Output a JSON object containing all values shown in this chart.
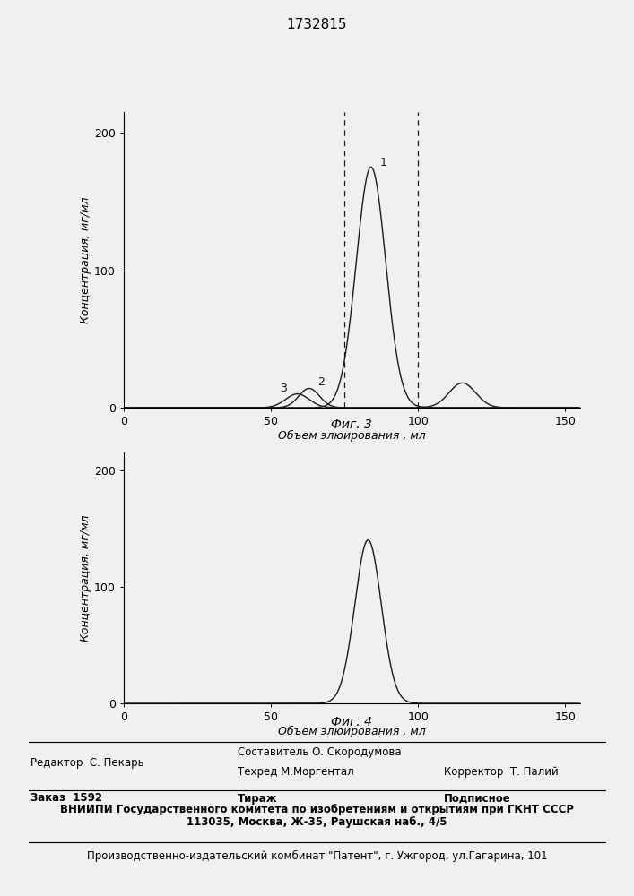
{
  "title": "1732815",
  "fig3_caption": "Фиг. 3",
  "fig4_caption": "Фиг. 4",
  "xlabel": "Объем элюирования , мл",
  "ylabel": "Концентрация, мг/мл",
  "xlim": [
    0,
    155
  ],
  "ylim": [
    0,
    215
  ],
  "yticks": [
    0,
    100,
    200
  ],
  "xticks": [
    0,
    50,
    100,
    150
  ],
  "dashed_x1": 75,
  "dashed_x2": 100,
  "bg": "#f0f0f0",
  "lc": "#1a1a1a",
  "footer_editor": "Редактор  С. Пекарь",
  "footer_compiler": "Составитель О. Скородумова",
  "footer_techred": "Техред М.Моргентал",
  "footer_corrector": "Корректор  Т. Палий",
  "footer_zakaz": "Заказ  1592",
  "footer_tirazh": "Тираж",
  "footer_podpisnoe": "Подписное",
  "footer_vnipi": "ВНИИПИ Государственного комитета по изобретениям и открытиям при ГКНТ СССР",
  "footer_address": "113035, Москва, Ж-35, Раушская наб., 4/5",
  "footer_patent": "Производственно-издательский комбинат \"Патент\", г. Ужгород, ул.Гагарина, 101"
}
